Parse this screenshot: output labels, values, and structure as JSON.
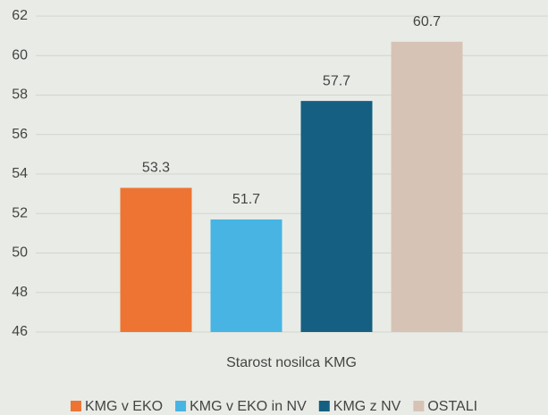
{
  "chart_data": {
    "type": "bar",
    "categories": [
      "Starost nosilca KMG"
    ],
    "series": [
      {
        "name": "KMG v EKO",
        "color": "#ed7433",
        "values": [
          53.3
        ]
      },
      {
        "name": "KMG v EKO in NV",
        "color": "#47b4e3",
        "values": [
          51.7
        ]
      },
      {
        "name": "KMG z NV",
        "color": "#155f82",
        "values": [
          57.7
        ]
      },
      {
        "name": "OSTALI",
        "color": "#d7c3b5",
        "values": [
          60.7
        ]
      }
    ],
    "ylim": [
      46,
      62
    ],
    "yticks": [
      46,
      48,
      50,
      52,
      54,
      56,
      58,
      60,
      62
    ],
    "grid": true,
    "legend": "bottom"
  }
}
